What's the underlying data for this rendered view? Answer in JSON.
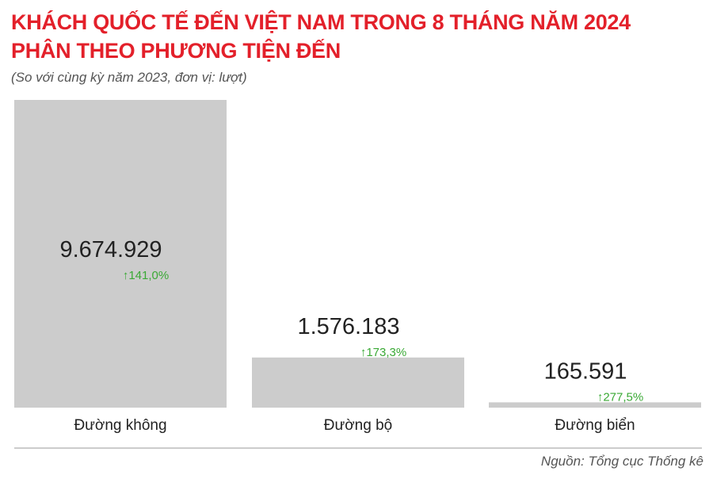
{
  "title_lines": [
    "KHÁCH QUỐC TẾ ĐẾN VIỆT NAM TRONG 8 THÁNG NĂM 2024",
    "PHÂN THEO PHƯƠNG TIỆN ĐẾN"
  ],
  "subtitle": "(So với cùng kỳ năm 2023, đơn vị: lượt)",
  "source": "Nguồn: Tổng cục Thống kê",
  "colors": {
    "title": "#e3202a",
    "bar": "#cccccc",
    "growth": "#3aa935",
    "value": "#222222",
    "axis": "#cccccc"
  },
  "chart_data": {
    "type": "bar",
    "categories": [
      "Đường không",
      "Đường bộ",
      "Đường biển"
    ],
    "values": [
      9674929,
      1576183,
      165591
    ],
    "value_labels": [
      "9.674.929",
      "1.576.183",
      "165.591"
    ],
    "growth_labels": [
      "141,0%",
      "173,3%",
      "277,5%"
    ],
    "growth_direction": "up",
    "ylim": [
      0,
      9674929
    ]
  }
}
